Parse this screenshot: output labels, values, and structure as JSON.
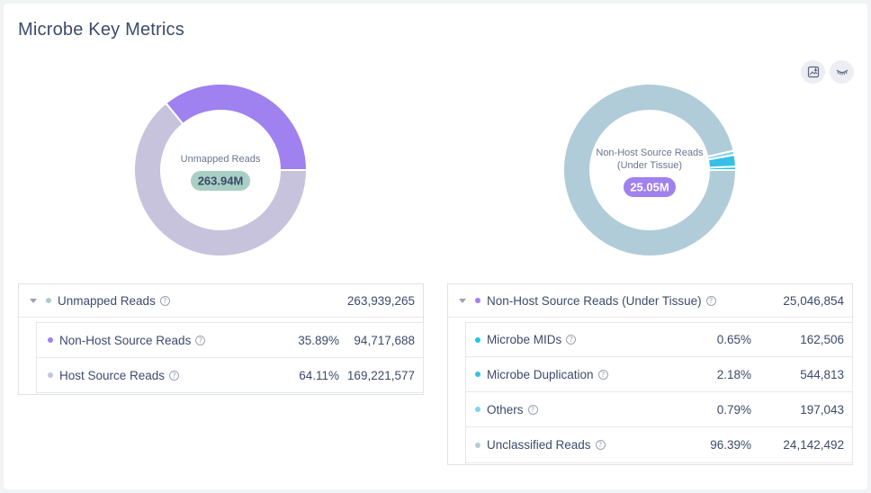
{
  "page": {
    "title": "Microbe Key Metrics"
  },
  "toolbar": {
    "download_icon": "image-download-icon",
    "hide_icon": "eye-closed-icon"
  },
  "chart_data": [
    {
      "type": "pie",
      "variant": "donut",
      "center_label": "Unmapped Reads",
      "center_value": "263.94M",
      "categories": [
        "Non-Host Source Reads",
        "Host Source Reads"
      ],
      "values": [
        35.89,
        64.11
      ],
      "colors": [
        "#9f81ef",
        "#c8c3dc"
      ]
    },
    {
      "type": "pie",
      "variant": "donut",
      "center_label_lines": [
        "Non-Host Source Reads",
        "(Under Tissue)"
      ],
      "center_value": "25.05M",
      "categories": [
        "Microbe MIDs",
        "Microbe Duplication",
        "Others",
        "Unclassified Reads"
      ],
      "values": [
        0.65,
        2.18,
        0.79,
        96.39
      ],
      "colors": [
        "#1ec6e8",
        "#36bfe9",
        "#7fd5ec",
        "#b0ccd8"
      ]
    }
  ],
  "left_table": {
    "header": {
      "label": "Unmapped Reads",
      "value": "263,939,265",
      "dot": "#a8cfc3"
    },
    "rows": [
      {
        "label": "Non-Host Source Reads",
        "percent": "35.89%",
        "value": "94,717,688",
        "dot": "#9f81ef"
      },
      {
        "label": "Host Source Reads",
        "percent": "64.11%",
        "value": "169,221,577",
        "dot": "#c8c3dc"
      }
    ]
  },
  "right_table": {
    "header": {
      "label": "Non-Host Source Reads (Under Tissue)",
      "value": "25,046,854",
      "dot": "#9f81ef"
    },
    "rows": [
      {
        "label": "Microbe MIDs",
        "percent": "0.65%",
        "value": "162,506",
        "dot": "#1ec6e8"
      },
      {
        "label": "Microbe Duplication",
        "percent": "2.18%",
        "value": "544,813",
        "dot": "#36bfe9"
      },
      {
        "label": "Others",
        "percent": "0.79%",
        "value": "197,043",
        "dot": "#7fd5ec"
      },
      {
        "label": "Unclassified Reads",
        "percent": "96.39%",
        "value": "24,142,492",
        "dot": "#b0ccd8"
      }
    ]
  }
}
